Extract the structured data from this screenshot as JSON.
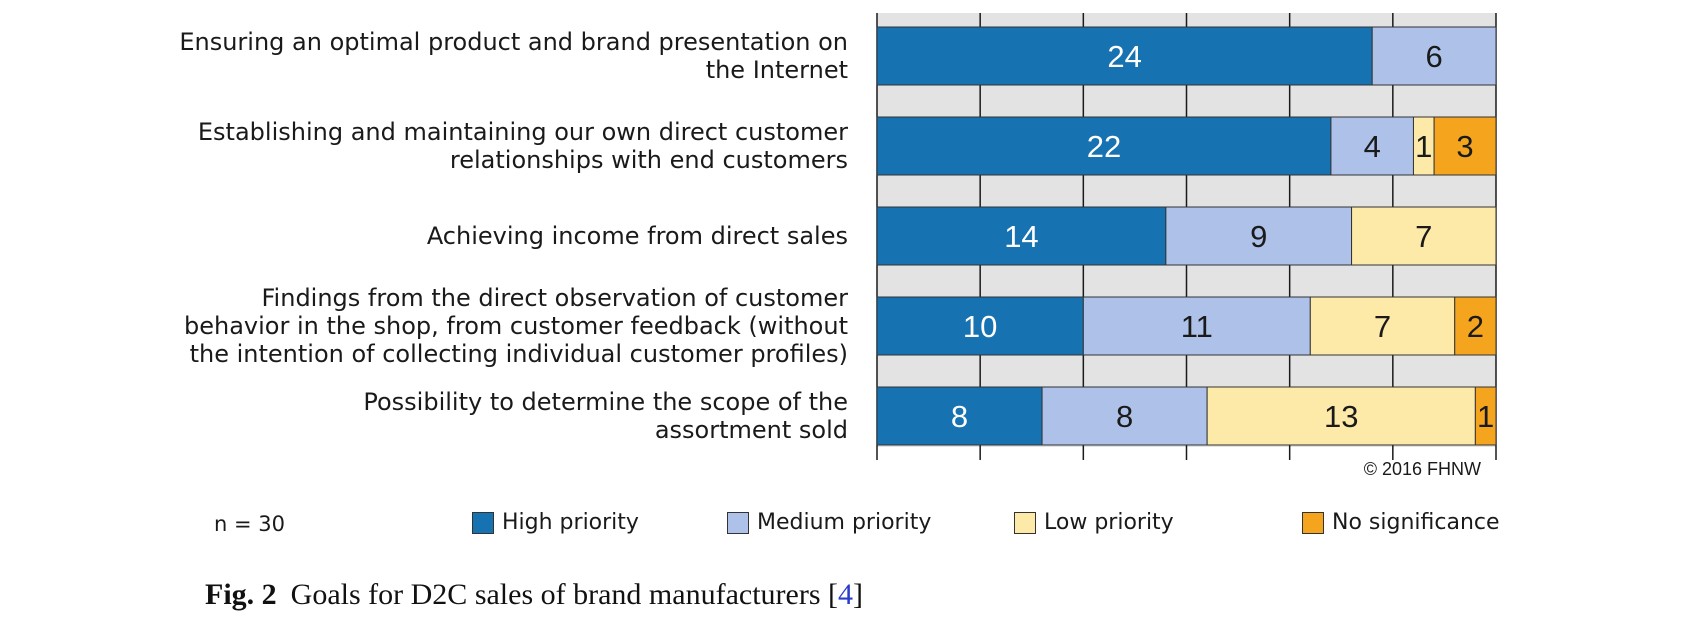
{
  "chart_data": {
    "type": "bar",
    "orientation": "horizontal",
    "stacked": true,
    "categories": [
      "Ensuring an optimal product and brand presentation on\nthe Internet",
      "Establishing and maintaining our own direct customer\nrelationships with end customers",
      "Achieving income from direct sales",
      "Findings from the direct observation of customer\nbehavior in the shop, from customer feedback (without\nthe intention of collecting individual customer profiles)",
      "Possibility to determine the scope of the\nassortment sold"
    ],
    "series": [
      {
        "name": "High priority",
        "color": "#1672b0",
        "text_color": "#ffffff",
        "values": [
          24,
          22,
          14,
          10,
          8
        ]
      },
      {
        "name": "Medium priority",
        "color": "#aec2e9",
        "text_color": "#1a1a1a",
        "values": [
          6,
          4,
          9,
          11,
          8
        ]
      },
      {
        "name": "Low priority",
        "color": "#fde9a8",
        "text_color": "#1a1a1a",
        "values": [
          0,
          1,
          7,
          7,
          13
        ]
      },
      {
        "name": "No significance",
        "color": "#f4a51d",
        "text_color": "#1a1a1a",
        "values": [
          0,
          3,
          0,
          2,
          1
        ]
      }
    ],
    "xlim": [
      0,
      30
    ],
    "grid": true,
    "legend_position": "bottom"
  },
  "copyright": "© 2016 FHNW",
  "sample_size": "n = 30",
  "caption": {
    "label": "Fig. 2",
    "text": "Goals for D2C sales of brand manufacturers [",
    "citation": "4",
    "close": "]"
  }
}
